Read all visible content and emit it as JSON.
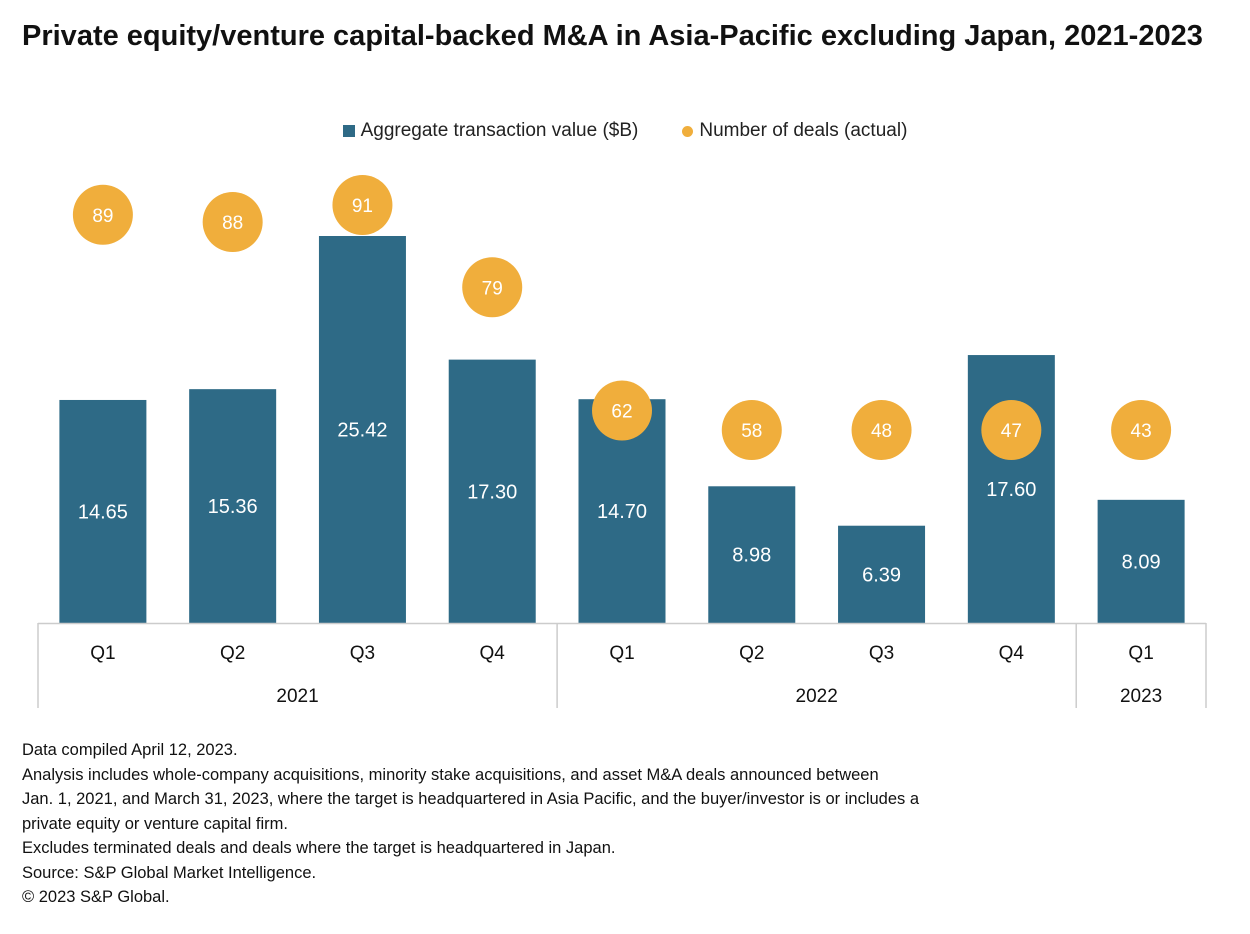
{
  "title": "Private equity/venture capital-backed M&A in Asia-Pacific excluding Japan, 2021-2023",
  "colors": {
    "bar": "#2e6a86",
    "dot": "#f0ae3c",
    "axis": "#cccccc",
    "label_on_bar": "#ffffff"
  },
  "chart_data": {
    "type": "bar",
    "title": "Private equity/venture capital-backed M&A in Asia-Pacific excluding Japan, 2021-2023",
    "categories": [
      "Q1",
      "Q2",
      "Q3",
      "Q4",
      "Q1",
      "Q2",
      "Q3",
      "Q4",
      "Q1"
    ],
    "groups": [
      {
        "label": "2021",
        "count": 4
      },
      {
        "label": "2022",
        "count": 4
      },
      {
        "label": "2023",
        "count": 1
      }
    ],
    "series": [
      {
        "name": "Aggregate transaction value ($B)",
        "type": "bar",
        "values": [
          14.65,
          15.36,
          25.42,
          17.3,
          14.7,
          8.98,
          6.39,
          17.6,
          8.09
        ],
        "labels": [
          "14.65",
          "15.36",
          "25.42",
          "17.30",
          "14.70",
          "8.98",
          "6.39",
          "17.60",
          "8.09"
        ]
      },
      {
        "name": "Number of deals (actual)",
        "type": "scatter",
        "values": [
          89,
          88,
          91,
          79,
          62,
          58,
          48,
          47,
          43
        ],
        "labels": [
          "89",
          "88",
          "91",
          "79",
          "62",
          "58",
          "48",
          "47",
          "43"
        ]
      }
    ],
    "xlabel": "",
    "ylabel": "",
    "bar_ylim": [
      0,
      26.5
    ],
    "deals_ylim": [
      0,
      100
    ]
  },
  "legend": [
    {
      "label": "Aggregate transaction value ($B)",
      "icon": "square-swatch"
    },
    {
      "label": "Number of deals (actual)",
      "icon": "dot-swatch"
    }
  ],
  "notes": [
    "Data compiled April 12, 2023.",
    "Analysis includes whole-company acquisitions, minority stake acquisitions, and asset M&A deals announced between",
    "Jan. 1, 2021, and March 31, 2023, where the target is headquartered in Asia Pacific, and the buyer/investor is or includes a",
    "private equity or venture capital firm.",
    "Excludes terminated deals and deals where the target is headquartered in Japan.",
    "Source: S&P Global Market Intelligence.",
    "© 2023 S&P Global."
  ]
}
